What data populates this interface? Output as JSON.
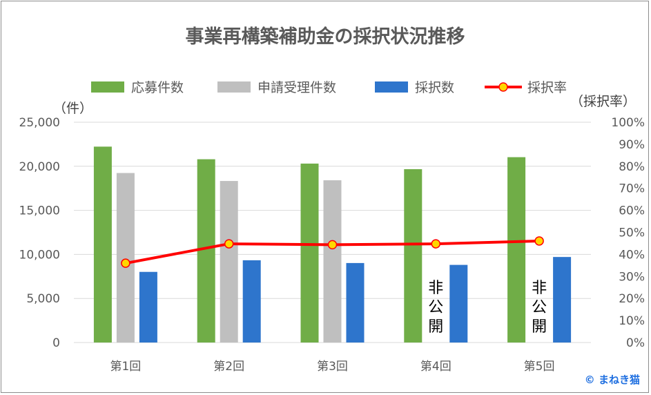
{
  "chart_data": {
    "type": "bar",
    "title": "事業再構築補助金の採択状況推移",
    "categories": [
      "第1回",
      "第2回",
      "第3回",
      "第4回",
      "第5回"
    ],
    "series": [
      {
        "name": "応募件数",
        "type": "bar",
        "axis": "left",
        "color": "#70ad47",
        "values": [
          22231,
          20800,
          20307,
          19673,
          21035
        ]
      },
      {
        "name": "申請受理件数",
        "type": "bar",
        "axis": "left",
        "color": "#bfbfbf",
        "values": [
          19237,
          18333,
          18412,
          null,
          null
        ]
      },
      {
        "name": "採択数",
        "type": "bar",
        "axis": "left",
        "color": "#2e75cc",
        "values": [
          8016,
          9336,
          9021,
          8810,
          9707
        ]
      },
      {
        "name": "採択率",
        "type": "line",
        "axis": "right",
        "color": "#ff0000",
        "marker_color": "#ffd700",
        "values": [
          36.0,
          44.8,
          44.4,
          44.8,
          46.1
        ]
      }
    ],
    "y_left": {
      "unit": "（件）",
      "ylim": [
        0,
        25000
      ],
      "ticks": [
        "0",
        "5,000",
        "10,000",
        "15,000",
        "20,000",
        "25,000"
      ]
    },
    "y_right": {
      "unit": "（採択率）",
      "ylim": [
        0,
        100
      ],
      "ticks": [
        "0%",
        "10%",
        "20%",
        "30%",
        "40%",
        "50%",
        "60%",
        "70%",
        "80%",
        "90%",
        "100%"
      ]
    },
    "annotations": [
      {
        "category": "第4回",
        "text": "非公開"
      },
      {
        "category": "第5回",
        "text": "非公開"
      }
    ],
    "grid": true,
    "legend": "top"
  },
  "credit": "© まねき猫"
}
